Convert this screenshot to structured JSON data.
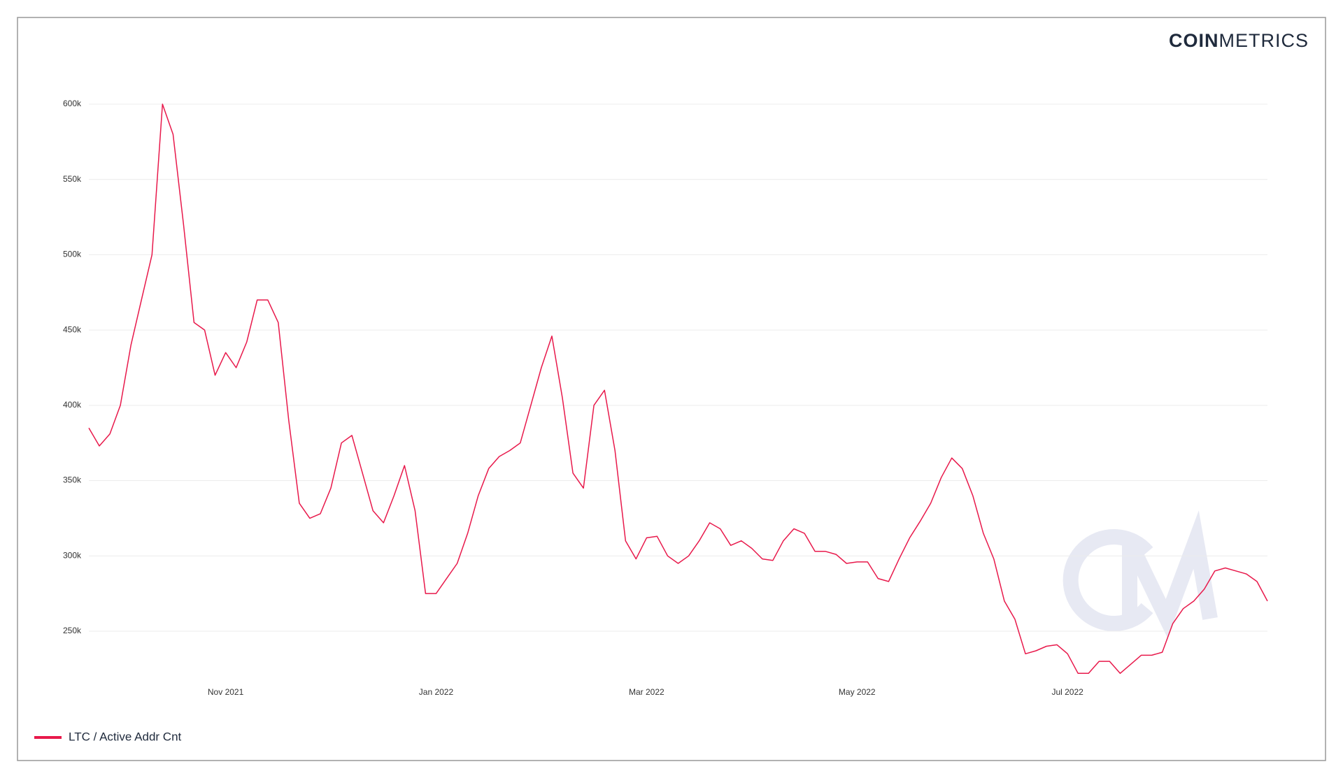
{
  "brand": {
    "bold": "COIN",
    "light": "METRICS"
  },
  "chart_data": {
    "type": "line",
    "categories": [
      null,
      null,
      null,
      null,
      null,
      null,
      null,
      null,
      null,
      null,
      null,
      null,
      null,
      "Nov 2021",
      null,
      null,
      null,
      null,
      null,
      null,
      null,
      null,
      null,
      null,
      null,
      null,
      null,
      null,
      null,
      null,
      null,
      null,
      null,
      "Jan 2022",
      null,
      null,
      null,
      null,
      null,
      null,
      null,
      null,
      null,
      null,
      null,
      null,
      null,
      null,
      null,
      null,
      null,
      null,
      null,
      "Mar 2022",
      null,
      null,
      null,
      null,
      null,
      null,
      null,
      null,
      null,
      null,
      null,
      null,
      null,
      null,
      null,
      null,
      null,
      null,
      null,
      "May 2022",
      null,
      null,
      null,
      null,
      null,
      null,
      null,
      null,
      null,
      null,
      null,
      null,
      null,
      null,
      null,
      null,
      null,
      null,
      null,
      "Jul 2022",
      null,
      null,
      null,
      null,
      null,
      null,
      null,
      null,
      null,
      null,
      null,
      null,
      null,
      null,
      null,
      null,
      null,
      null,
      null
    ],
    "series": [
      {
        "name": "LTC / Active Addr Cnt",
        "color": "#e8194b",
        "values": [
          385000,
          373000,
          381000,
          400000,
          440000,
          470000,
          500000,
          600000,
          580000,
          520000,
          455000,
          450000,
          420000,
          435000,
          425000,
          442000,
          470000,
          470000,
          455000,
          390000,
          335000,
          325000,
          328000,
          345000,
          375000,
          380000,
          355000,
          330000,
          322000,
          340000,
          360000,
          330000,
          275000,
          275000,
          285000,
          295000,
          315000,
          340000,
          358000,
          366000,
          370000,
          375000,
          400000,
          425000,
          446000,
          405000,
          355000,
          345000,
          400000,
          410000,
          370000,
          310000,
          298000,
          312000,
          313000,
          300000,
          295000,
          300000,
          310000,
          322000,
          318000,
          307000,
          310000,
          305000,
          298000,
          297000,
          310000,
          318000,
          315000,
          303000,
          303000,
          301000,
          295000,
          296000,
          296000,
          285000,
          283000,
          298000,
          312000,
          323000,
          335000,
          352000,
          365000,
          358000,
          340000,
          315000,
          298000,
          270000,
          258000,
          235000,
          237000,
          240000,
          241000,
          235000,
          222000,
          222000,
          230000,
          230000,
          222000,
          228000,
          234000,
          234000,
          236000,
          255000,
          265000,
          270000,
          278000,
          290000,
          292000,
          290000,
          288000,
          283000,
          270000
        ]
      }
    ],
    "ylim": [
      218000,
      615000
    ],
    "yticks": [
      {
        "value": 250000,
        "label": "250k"
      },
      {
        "value": 300000,
        "label": "300k"
      },
      {
        "value": 350000,
        "label": "350k"
      },
      {
        "value": 400000,
        "label": "400k"
      },
      {
        "value": 450000,
        "label": "450k"
      },
      {
        "value": 500000,
        "label": "500k"
      },
      {
        "value": 550000,
        "label": "550k"
      },
      {
        "value": 600000,
        "label": "600k"
      }
    ],
    "grid": true
  }
}
